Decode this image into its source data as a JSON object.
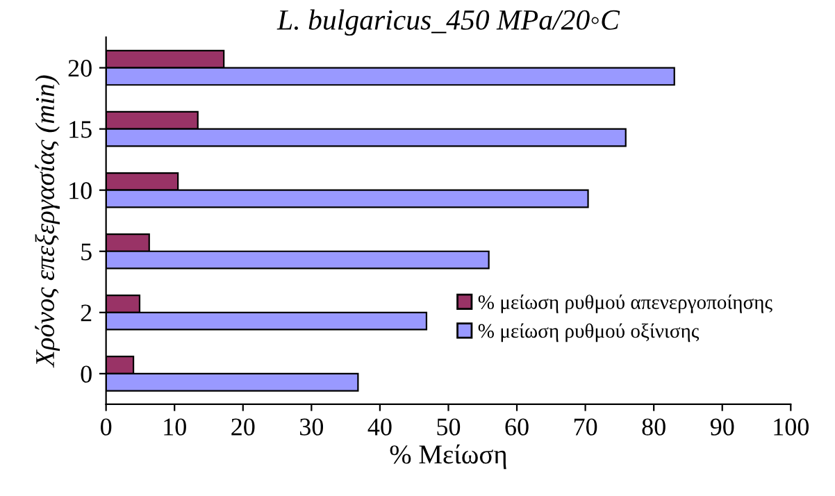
{
  "chart_data": {
    "type": "bar",
    "orientation": "horizontal",
    "title": "L. bulgaricus_450 MPa/20◦C",
    "xlabel": "% Μείωση",
    "ylabel": "Χρόνος επεξεργασίας (min)",
    "categories": [
      "20",
      "15",
      "10",
      "5",
      "2",
      "0"
    ],
    "series": [
      {
        "name": "% μείωση ρυθμού απενεργοποίησης",
        "color": "#993366",
        "values": [
          17.2,
          13.4,
          10.5,
          6.3,
          4.9,
          4.0
        ]
      },
      {
        "name": "% μείωση ρυθμού οξίνισης",
        "color": "#9999ff",
        "values": [
          83.0,
          75.9,
          70.4,
          55.9,
          46.8,
          36.8
        ]
      }
    ],
    "xlim": [
      0,
      100
    ],
    "xticks": [
      0,
      10,
      20,
      30,
      40,
      50,
      60,
      70,
      80,
      90,
      100
    ],
    "grid": false,
    "legend": "bottom right"
  }
}
